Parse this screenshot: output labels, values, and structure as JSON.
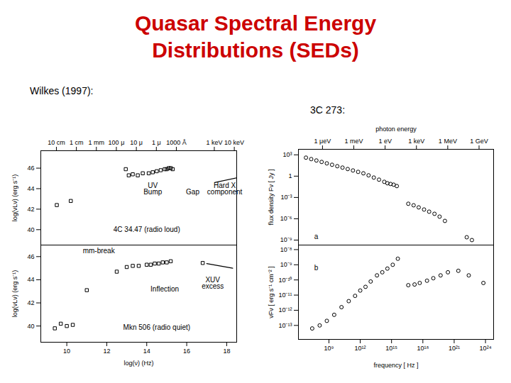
{
  "slide": {
    "title": "Quasar Spectral Energy Distributions (SEDs)",
    "left_caption": "Wilkes (1997):",
    "right_caption": "3C 273:"
  },
  "chart_data": [
    {
      "type": "scatter",
      "xlim": [
        8.7,
        18.5
      ],
      "ylim": [
        38.5,
        47.7
      ],
      "x2ticks": [
        {
          "value": 9.48,
          "label": "10 cm"
        },
        {
          "value": 10.48,
          "label": "1 cm"
        },
        {
          "value": 11.48,
          "label": "1 mm"
        },
        {
          "value": 12.48,
          "label": "100 μ"
        },
        {
          "value": 13.48,
          "label": "10 μ"
        },
        {
          "value": 14.48,
          "label": "1 μ"
        },
        {
          "value": 15.48,
          "label": "1000 Å"
        },
        {
          "value": 17.38,
          "label": "1 keV"
        },
        {
          "value": 18.38,
          "label": "10 keV"
        }
      ],
      "yticks": [
        40,
        42,
        44,
        46
      ],
      "ylabel": "log(νLν) (erg s⁻¹)",
      "series": [
        {
          "type": "scatter",
          "marker": "square",
          "x": [
            9.5,
            10.2,
            12.95,
            13.1,
            13.3,
            13.55,
            13.8,
            14.1,
            14.3,
            14.5,
            14.7,
            14.9,
            15.0,
            15.1,
            15.2,
            15.3
          ],
          "values": [
            42.4,
            42.8,
            45.9,
            45.3,
            45.4,
            45.3,
            45.5,
            45.5,
            45.6,
            45.7,
            45.8,
            45.9,
            45.9,
            46.0,
            46.0,
            45.9
          ]
        },
        {
          "type": "line",
          "x": [
            17.4,
            18.6
          ],
          "values": [
            44.6,
            45.1
          ]
        }
      ],
      "annotations": [
        {
          "text": "UV",
          "x": 14.3,
          "y": 44.3
        },
        {
          "text": "Bump",
          "x": 14.3,
          "y": 43.7
        },
        {
          "text": "Gap",
          "x": 16.3,
          "y": 43.7
        },
        {
          "text": "Hard X",
          "x": 17.9,
          "y": 44.3
        },
        {
          "text": "component",
          "x": 17.9,
          "y": 43.7
        },
        {
          "text": "4C 34.47 (radio loud)",
          "x": 14.0,
          "y": 40.0
        }
      ]
    },
    {
      "type": "scatter",
      "xlim": [
        8.7,
        18.5
      ],
      "ylim": [
        38.6,
        47.0
      ],
      "xticks": [
        10,
        12,
        14,
        16,
        18
      ],
      "yticks": [
        40,
        42,
        44,
        46
      ],
      "xlabel": "log(ν) (Hz)",
      "ylabel": "log(νLν) (erg s⁻¹)",
      "series": [
        {
          "type": "scatter",
          "marker": "square",
          "x": [
            9.4,
            9.7,
            10.0,
            10.3,
            11.0,
            12.5,
            13.0,
            13.3,
            13.6,
            14.0,
            14.2,
            14.4,
            14.6,
            14.8,
            15.0,
            15.2,
            16.8
          ],
          "values": [
            39.8,
            40.2,
            40.0,
            40.1,
            43.1,
            44.7,
            45.1,
            45.2,
            45.2,
            45.3,
            45.3,
            45.4,
            45.4,
            45.5,
            45.5,
            45.6,
            45.45
          ]
        },
        {
          "type": "line",
          "x": [
            17.0,
            18.3
          ],
          "values": [
            45.4,
            45.0
          ]
        }
      ],
      "annotations": [
        {
          "text": "mm-break",
          "x": 11.6,
          "y": 46.5
        },
        {
          "text": "Inflection",
          "x": 14.9,
          "y": 43.2
        },
        {
          "text": "XUV",
          "x": 17.3,
          "y": 44.0
        },
        {
          "text": "excess",
          "x": 17.3,
          "y": 43.4
        },
        {
          "text": "Mkn 506 (radio quiet)",
          "x": 14.5,
          "y": 39.9
        }
      ]
    },
    {
      "type": "scatter",
      "log": true,
      "xlim": [
        1200000,
        6e+24
      ],
      "ylim": [
        2e-10,
        6000
      ],
      "x2ticks": [
        {
          "value": 242000000,
          "label": "1 μeV"
        },
        {
          "value": 242000000000,
          "label": "1 meV"
        },
        {
          "value": 242000000000000.0,
          "label": "1 eV"
        },
        {
          "value": 2.42e+17,
          "label": "1 keV"
        },
        {
          "value": 2.42e+20,
          "label": "1 MeV"
        },
        {
          "value": 2.42e+23,
          "label": "1 GeV"
        }
      ],
      "x2label": "photon energy",
      "yticks": [
        {
          "value": 1000,
          "label": "10³"
        },
        1,
        {
          "value": 0.001,
          "label": "10⁻³"
        },
        {
          "value": 1e-06,
          "label": "10⁻⁶"
        },
        {
          "value": 1e-09,
          "label": "10⁻⁹"
        }
      ],
      "ylabel": "flux density Fν [ Jy ]",
      "series": [
        {
          "type": "scatter",
          "marker": "circle",
          "x": [
            6300000,
            20000000,
            63000000,
            200000000,
            630000000,
            2000000000,
            6300000000,
            20000000000,
            63000000000,
            200000000000,
            630000000000,
            2000000000000,
            6300000000000,
            20000000000000,
            63000000000000,
            200000000000000.0,
            400000000000000.0,
            790000000000000.0,
            1600000000000000.0,
            3200000000000000.0,
            4e+16,
            1.3e+17,
            4e+17,
            1.3e+18,
            4e+18,
            1.3e+19,
            4e+19,
            1.3e+20,
            1.6e+22,
            5e+22
          ],
          "values": [
            400,
            250,
            160,
            100,
            63,
            40,
            25,
            16,
            10,
            6.3,
            4,
            2.5,
            1.3,
            0.63,
            0.32,
            0.16,
            0.1,
            0.079,
            0.063,
            0.04,
            0.00013,
            7.9e-05,
            4e-05,
            2e-05,
            1e-05,
            5e-06,
            2e-06,
            5e-07,
            2.5e-09,
            1e-09
          ]
        }
      ],
      "annotations": [
        {
          "text": "a",
          "x": 60000000,
          "y": 3e-09
        }
      ]
    },
    {
      "type": "scatter",
      "log": true,
      "xlim": [
        1200000,
        6e+24
      ],
      "ylim": [
        1.2e-14,
        2e-08
      ],
      "xticks": [
        {
          "value": 1000000000,
          "label": "10⁹"
        },
        {
          "value": 1000000000000,
          "label": "10¹²"
        },
        {
          "value": 1000000000000000.0,
          "label": "10¹⁵"
        },
        {
          "value": 1e+18,
          "label": "10¹⁸"
        },
        {
          "value": 1e+21,
          "label": "10²¹"
        },
        {
          "value": 1e+24,
          "label": "10²⁴"
        }
      ],
      "xlabel": "frequency [ Hz ]",
      "yticks": [
        {
          "value": 1e-08,
          "label": "10⁻⁸"
        },
        {
          "value": 1e-09,
          "label": "10⁻⁹"
        },
        {
          "value": 1e-10,
          "label": "10⁻¹⁰"
        },
        {
          "value": 1e-11,
          "label": "10⁻¹¹"
        },
        {
          "value": 1e-12,
          "label": "10⁻¹²"
        },
        {
          "value": 1e-13,
          "label": "10⁻¹³"
        }
      ],
      "ylabel": "νFν [ erg s⁻¹ cm⁻² ]",
      "series": [
        {
          "type": "scatter",
          "marker": "circle",
          "x": [
            25000000,
            130000000,
            630000000,
            3200000000,
            16000000000,
            79000000000,
            320000000000,
            1000000000000,
            3200000000000,
            10000000000000,
            40000000000000,
            130000000000000.0,
            400000000000000.0,
            1300000000000000.0,
            4000000000000000.0,
            4e+16,
            1.6e+17,
            5e+17,
            2.5e+18,
            1e+19,
            5e+19,
            2.5e+20,
            2.5e+21,
            2.5e+22,
            6.3e+23
          ],
          "values": [
            6.3e-14,
            1e-13,
            2e-13,
            5e-13,
            1.6e-12,
            4e-12,
            8.9e-12,
            2e-11,
            3.5e-11,
            7.9e-11,
            2e-10,
            3.2e-10,
            5.6e-10,
            1e-09,
            2.5e-09,
            4.5e-11,
            5e-11,
            6.3e-11,
            8.9e-11,
            1.3e-10,
            2e-10,
            3.2e-10,
            4e-10,
            2e-10,
            6.3e-11
          ]
        }
      ],
      "annotations": [
        {
          "text": "b",
          "x": 60000000,
          "y": 6e-10
        }
      ]
    }
  ]
}
